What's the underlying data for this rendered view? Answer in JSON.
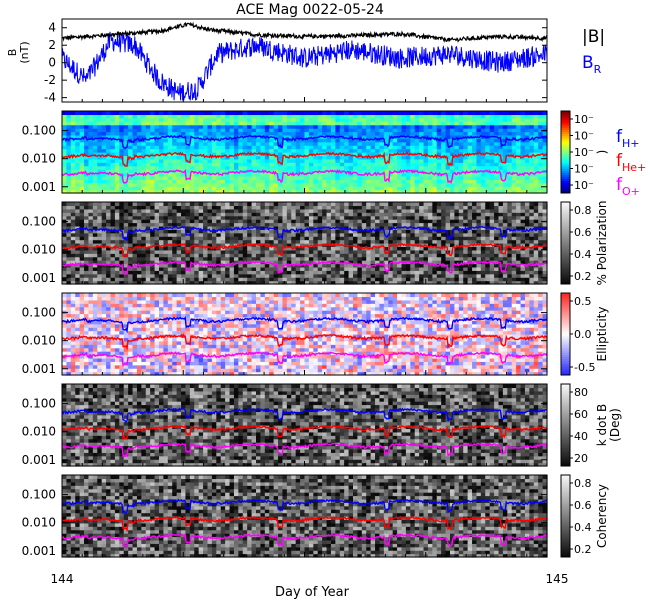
{
  "title": "ACE Mag 0022-05-24",
  "xlabel": "Day of Year",
  "colors": {
    "h": "#0000ff",
    "he": "#ff0000",
    "o": "#ff00ff",
    "b": "#000000",
    "br": "#0000ff"
  },
  "legend": {
    "b_label": "|B|",
    "br_label": "B",
    "br_sub": "R",
    "fh": "f",
    "fh_sub": "H+",
    "fhe": "f",
    "fhe_sub": "He+",
    "fo": "f",
    "fo_sub": "O+"
  },
  "chart_data": [
    {
      "type": "line",
      "panel": "field",
      "ylabel": "B",
      "yunit": "(nT)",
      "xlim": [
        144,
        145
      ],
      "ylim": [
        -4.5,
        5
      ],
      "yticks": [
        "4",
        "2",
        "0",
        "-2",
        "-4"
      ],
      "xticks": [
        "144",
        "145"
      ],
      "series": [
        {
          "name": "|B|",
          "x": [
            144.0,
            144.1,
            144.2,
            144.26,
            144.3,
            144.4,
            144.5,
            144.6,
            144.7,
            144.8,
            144.9,
            145.0
          ],
          "values": [
            2.8,
            3.2,
            3.6,
            4.4,
            3.8,
            3.2,
            3.0,
            3.1,
            3.3,
            2.6,
            3.0,
            2.8
          ]
        },
        {
          "name": "B_R",
          "x": [
            144.0,
            144.05,
            144.1,
            144.15,
            144.2,
            144.24,
            144.28,
            144.32,
            144.4,
            144.5,
            144.6,
            144.7,
            144.8,
            144.9,
            145.0
          ],
          "values": [
            0.5,
            -2.0,
            2.5,
            2.0,
            -2.0,
            -3.5,
            -3.0,
            1.0,
            2.0,
            0.5,
            1.5,
            0.5,
            1.0,
            0.0,
            1.0
          ]
        }
      ]
    },
    {
      "type": "heatmap",
      "panel": "power",
      "ylim": [
        0.0006,
        0.5
      ],
      "yticks": [
        "0.100",
        "0.010",
        "0.001"
      ],
      "colorbar": {
        "ticks": [
          "10⁻",
          "10⁻",
          "10⁻",
          "10⁻",
          "10⁻"
        ],
        "label": ")"
      },
      "series": [
        {
          "name": "f_H+",
          "mean": 0.055
        },
        {
          "name": "f_He+",
          "mean": 0.0135
        },
        {
          "name": "f_O+",
          "mean": 0.0032
        }
      ]
    },
    {
      "type": "heatmap",
      "panel": "polarization",
      "ylim": [
        0.0006,
        0.5
      ],
      "yticks": [
        "0.100",
        "0.010",
        "0.001"
      ],
      "colorbar": {
        "ticks": [
          "0.8",
          "0.6",
          "0.4",
          "0.2"
        ],
        "label": "% Polarization"
      },
      "series": [
        {
          "name": "f_H+",
          "mean": 0.055
        },
        {
          "name": "f_He+",
          "mean": 0.0135
        },
        {
          "name": "f_O+",
          "mean": 0.0032
        }
      ]
    },
    {
      "type": "heatmap",
      "panel": "ellipticity",
      "ylim": [
        0.0006,
        0.5
      ],
      "yticks": [
        "0.100",
        "0.010",
        "0.001"
      ],
      "colorbar": {
        "ticks": [
          "0.5",
          "0.0",
          "-0.5"
        ],
        "label": "Ellipticity"
      },
      "series": [
        {
          "name": "f_H+",
          "mean": 0.055
        },
        {
          "name": "f_He+",
          "mean": 0.0135
        },
        {
          "name": "f_O+",
          "mean": 0.0032
        }
      ]
    },
    {
      "type": "heatmap",
      "panel": "kdotb",
      "ylim": [
        0.0006,
        0.5
      ],
      "yticks": [
        "0.100",
        "0.010",
        "0.001"
      ],
      "colorbar": {
        "ticks": [
          "80",
          "60",
          "40",
          "20"
        ],
        "label": "k dot B",
        "label2": "(Deg)"
      },
      "series": [
        {
          "name": "f_H+",
          "mean": 0.055
        },
        {
          "name": "f_He+",
          "mean": 0.0135
        },
        {
          "name": "f_O+",
          "mean": 0.0032
        }
      ]
    },
    {
      "type": "heatmap",
      "panel": "coherency",
      "ylim": [
        0.0006,
        0.5
      ],
      "yticks": [
        "0.100",
        "0.010",
        "0.001"
      ],
      "colorbar": {
        "ticks": [
          "0.8",
          "0.6",
          "0.4",
          "0.2"
        ],
        "label": "Coherency"
      },
      "series": [
        {
          "name": "f_H+",
          "mean": 0.055
        },
        {
          "name": "f_He+",
          "mean": 0.0135
        },
        {
          "name": "f_O+",
          "mean": 0.0032
        }
      ]
    }
  ]
}
